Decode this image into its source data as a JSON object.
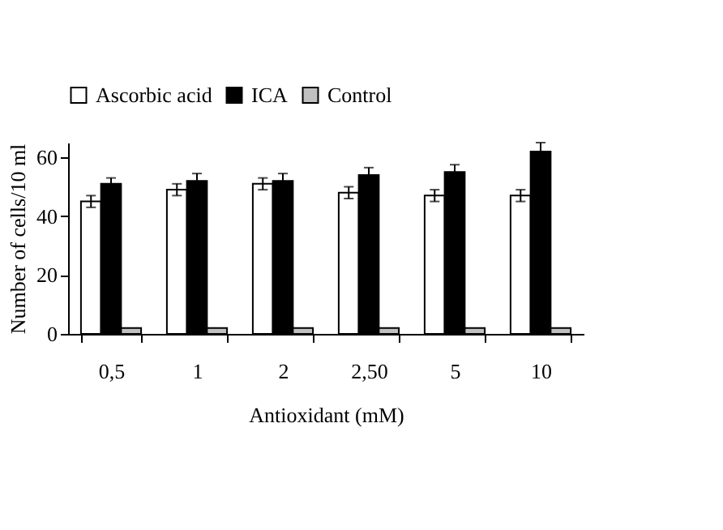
{
  "chart_data": {
    "type": "bar",
    "xlabel": "Antioxidant (mM)",
    "ylabel": "Number of cells/10 ml",
    "categories": [
      "0,5",
      "1",
      "2",
      "2,50",
      "5",
      "10"
    ],
    "series": [
      {
        "name": "Ascorbic acid",
        "color": "#ffffff",
        "values": [
          45,
          49,
          51,
          48,
          47,
          47
        ],
        "errors": [
          2,
          2,
          2,
          2,
          2,
          2
        ]
      },
      {
        "name": "ICA",
        "color": "#000000",
        "values": [
          51,
          52,
          52,
          54,
          55,
          62
        ],
        "errors": [
          2,
          2.5,
          2.5,
          2.5,
          2.5,
          3
        ]
      },
      {
        "name": "Control",
        "color": "#c0c0c0",
        "values": [
          2,
          2,
          2,
          2,
          2,
          2
        ]
      }
    ],
    "ylim": [
      0,
      65
    ],
    "yticks": [
      0,
      20,
      40,
      60
    ],
    "grid": false,
    "legend": "top"
  }
}
